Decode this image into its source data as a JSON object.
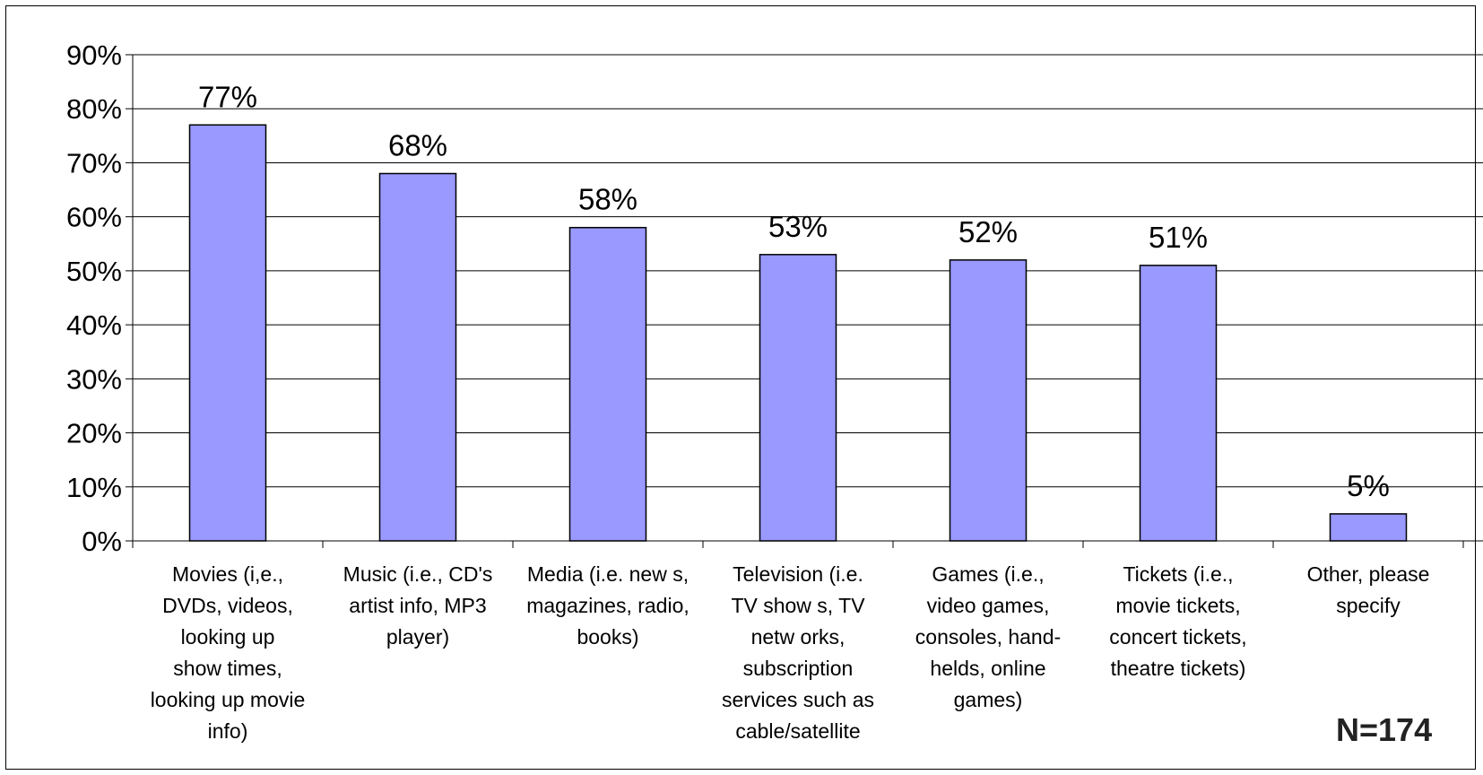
{
  "chart_data": {
    "type": "bar",
    "categories": [
      "Movies (i,e.,\nDVDs, videos,\nlooking up\nshow times,\nlooking up movie\ninfo)",
      "Music (i.e., CD's\nartist info, MP3\nplayer)",
      "Media (i.e. new s,\nmagazines, radio,\nbooks)",
      "Television (i.e.\nTV show s, TV\nnetw orks,\nsubscription\nservices such as\ncable/satellite",
      "Games (i.e.,\nvideo games,\nconsoles, hand-\nhelds, online\ngames)",
      "Tickets (i.e.,\nmovie tickets,\nconcert tickets,\ntheatre tickets)",
      "Other, please\nspecify"
    ],
    "values": [
      77,
      68,
      58,
      53,
      52,
      51,
      5
    ],
    "data_labels": [
      "77%",
      "68%",
      "58%",
      "53%",
      "52%",
      "51%",
      "5%"
    ],
    "yticks": [
      "0%",
      "10%",
      "20%",
      "30%",
      "40%",
      "50%",
      "60%",
      "70%",
      "80%",
      "90%"
    ],
    "ylim": [
      0,
      90
    ],
    "grid": true,
    "bar_color": "#9999ff",
    "title": "",
    "xlabel": "",
    "ylabel": ""
  },
  "note": "N=174"
}
